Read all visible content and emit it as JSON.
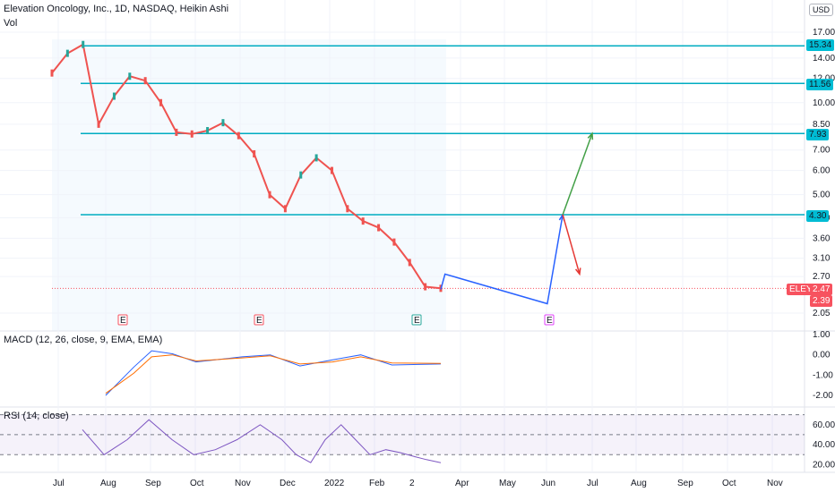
{
  "header": {
    "title": "Elevation Oncology, Inc., 1D, NASDAQ, Heikin Ashi",
    "vol_label": "Vol",
    "currency": "USD"
  },
  "macd": {
    "label": "MACD (12, 26, close, 9, EMA, EMA)"
  },
  "rsi": {
    "label": "RSI (14, close)"
  },
  "ticker_badge": {
    "symbol": "ELEY",
    "last": "2.47",
    "low": "2.39"
  },
  "levels": [
    {
      "value": 15.34,
      "label": "15.34"
    },
    {
      "value": 11.56,
      "label": "11.56"
    },
    {
      "value": 7.93,
      "label": "7.93"
    },
    {
      "value": 4.3,
      "label": "4.30"
    }
  ],
  "earnings_marker": "E",
  "chart_data": [
    {
      "type": "line",
      "title": "Elevation Oncology, Inc., 1D, NASDAQ, Heikin Ashi",
      "y_scale": "log",
      "y_ticks": [
        "17.00",
        "14.00",
        "12.00",
        "10.00",
        "8.50",
        "7.00",
        "6.00",
        "5.00",
        "4.20",
        "3.60",
        "3.10",
        "2.70",
        "2.05"
      ],
      "x_ticks": [
        "Jul",
        "Aug",
        "Sep",
        "Oct",
        "Nov",
        "Dec",
        "2022",
        "Feb",
        "2",
        "Apr",
        "May",
        "Jun",
        "Jul",
        "Aug",
        "Sep",
        "Oct",
        "Nov"
      ],
      "series": [
        {
          "x": [
            "2021-07-01",
            "2021-07-10",
            "2021-07-20",
            "2021-08-01",
            "2021-08-10",
            "2021-08-20",
            "2021-09-01",
            "2021-09-10",
            "2021-09-20",
            "2021-10-01",
            "2021-10-15",
            "2021-11-01",
            "2021-11-10",
            "2021-11-20",
            "2021-12-01",
            "2021-12-10",
            "2021-12-20",
            "2022-01-01",
            "2022-01-10",
            "2022-01-20",
            "2022-02-01",
            "2022-02-10",
            "2022-02-20",
            "2022-03-01",
            "2022-03-10",
            "2022-03-15"
          ],
          "y": [
            12.5,
            14.5,
            15.5,
            8.5,
            10.5,
            12.2,
            11.8,
            10.0,
            8.0,
            7.9,
            8.1,
            8.6,
            7.8,
            6.8,
            5.0,
            4.5,
            5.8,
            6.6,
            6.0,
            4.5,
            4.1,
            3.9,
            3.5,
            3.0,
            2.5,
            2.47
          ]
        }
      ],
      "projections": [
        {
          "color": "#2962ff",
          "x": [
            "2022-03-15",
            "2022-03-18",
            "2022-05-30",
            "2022-06-10"
          ],
          "y": [
            2.45,
            2.75,
            2.2,
            4.3
          ]
        },
        {
          "color": "#43a047",
          "x": [
            "2022-06-10",
            "2022-07-01"
          ],
          "y": [
            4.3,
            7.93
          ]
        },
        {
          "color": "#e53935",
          "x": [
            "2022-06-10",
            "2022-06-22"
          ],
          "y": [
            4.3,
            2.75
          ]
        }
      ]
    },
    {
      "type": "line",
      "title": "MACD (12, 26, close, 9, EMA, EMA)",
      "y_ticks": [
        "1.00",
        "0.00",
        "-1.00",
        "-2.00"
      ],
      "series": [
        {
          "name": "",
          "color": "#2962ff",
          "x": [
            "2021-08-01",
            "2021-08-20",
            "2021-09-01",
            "2021-09-15",
            "2021-10-01",
            "2021-11-01",
            "2021-11-20",
            "2021-12-10",
            "2022-01-01",
            "2022-01-20",
            "2022-02-10",
            "2022-03-15"
          ],
          "y": [
            -2.0,
            -0.6,
            0.2,
            0.05,
            -0.35,
            -0.1,
            0.0,
            -0.55,
            -0.25,
            0.0,
            -0.5,
            -0.45
          ]
        },
        {
          "name": "",
          "color": "#ff6d00",
          "x": [
            "2021-08-01",
            "2021-08-20",
            "2021-09-01",
            "2021-09-15",
            "2021-10-01",
            "2021-11-01",
            "2021-11-20",
            "2021-12-10",
            "2022-01-01",
            "2022-01-20",
            "2022-02-10",
            "2022-03-15"
          ],
          "y": [
            -1.9,
            -0.9,
            -0.1,
            0.0,
            -0.3,
            -0.15,
            -0.05,
            -0.45,
            -0.35,
            -0.1,
            -0.4,
            -0.42
          ]
        }
      ]
    },
    {
      "type": "line",
      "title": "RSI (14, close)",
      "y_ticks": [
        "60.00",
        "40.00",
        "20.00"
      ],
      "bands": [
        30,
        50,
        70
      ],
      "series": [
        {
          "name": "",
          "color": "#7e57c2",
          "x": [
            "2021-07-10",
            "2021-07-25",
            "2021-08-10",
            "2021-08-25",
            "2021-09-10",
            "2021-09-25",
            "2021-10-10",
            "2021-10-25",
            "2021-11-10",
            "2021-11-25",
            "2021-12-05",
            "2021-12-15",
            "2021-12-25",
            "2022-01-05",
            "2022-01-15",
            "2022-01-25",
            "2022-02-05",
            "2022-02-15",
            "2022-02-25",
            "2022-03-05",
            "2022-03-15"
          ],
          "y": [
            55,
            30,
            45,
            65,
            45,
            30,
            35,
            45,
            60,
            45,
            30,
            22,
            45,
            60,
            45,
            30,
            35,
            32,
            28,
            25,
            22
          ]
        }
      ]
    }
  ]
}
